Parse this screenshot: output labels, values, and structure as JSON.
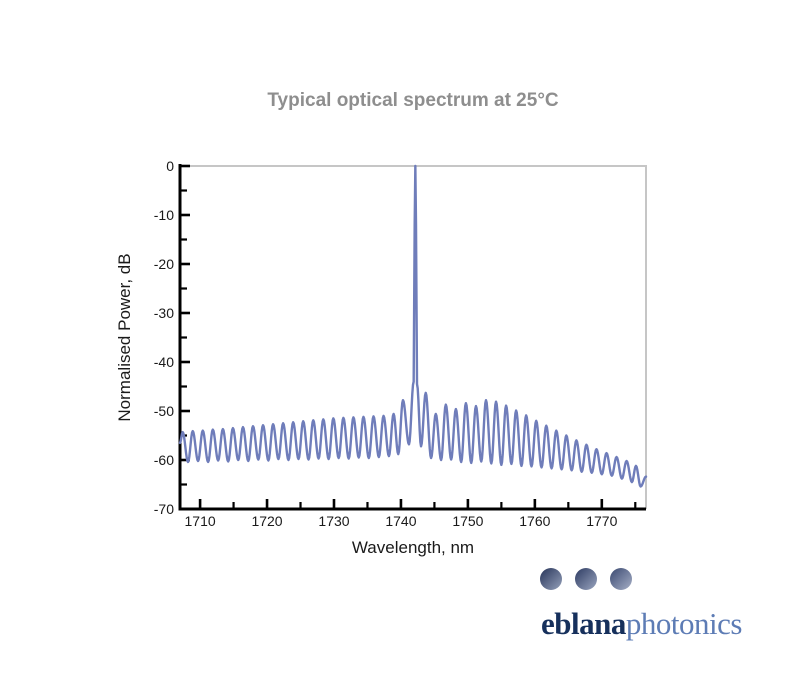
{
  "chart_data": {
    "type": "line",
    "title": "Typical optical spectrum at 25°C",
    "xlabel": "Wavelength, nm",
    "ylabel": "Normalised Power, dB",
    "xlim": [
      1707.0,
      1776.6
    ],
    "ylim": [
      -70,
      0
    ],
    "x_major_ticks": [
      1710,
      1720,
      1730,
      1740,
      1750,
      1760,
      1770
    ],
    "x_minor_ticks": [
      1715,
      1725,
      1735,
      1745,
      1755,
      1765,
      1775
    ],
    "y_major_ticks": [
      0,
      -10,
      -20,
      -30,
      -40,
      -50,
      -60,
      -70
    ],
    "y_minor_ticks": [
      -5,
      -15,
      -25,
      -35,
      -45,
      -55,
      -65
    ],
    "grid": false,
    "legend": null,
    "line_color": "#6f7dba",
    "axis_color": "#000000",
    "frame_color": "#c6c6c6",
    "title_color": "#8e8e8e",
    "main_peak": {
      "wavelength": 1742.2,
      "value": 0
    },
    "series": [
      {
        "name": "Optical spectrum at 25°C",
        "points": [
          [
            1707.0,
            -56.5
          ],
          [
            1707.4,
            -54.3
          ],
          [
            1708.2,
            -60.4
          ],
          [
            1708.9,
            -54.1
          ],
          [
            1709.7,
            -60.2
          ],
          [
            1710.4,
            -54.0
          ],
          [
            1711.2,
            -60.4
          ],
          [
            1711.9,
            -53.8
          ],
          [
            1712.7,
            -60.1
          ],
          [
            1713.4,
            -53.7
          ],
          [
            1714.2,
            -60.3
          ],
          [
            1714.9,
            -53.5
          ],
          [
            1715.7,
            -60.0
          ],
          [
            1716.4,
            -53.3
          ],
          [
            1717.2,
            -60.2
          ],
          [
            1717.9,
            -53.1
          ],
          [
            1718.7,
            -59.9
          ],
          [
            1719.4,
            -52.9
          ],
          [
            1720.2,
            -60.1
          ],
          [
            1720.9,
            -52.7
          ],
          [
            1721.7,
            -59.8
          ],
          [
            1722.4,
            -52.5
          ],
          [
            1723.2,
            -60.0
          ],
          [
            1723.9,
            -52.3
          ],
          [
            1724.7,
            -59.8
          ],
          [
            1725.4,
            -52.1
          ],
          [
            1726.2,
            -59.9
          ],
          [
            1726.9,
            -51.9
          ],
          [
            1727.7,
            -59.7
          ],
          [
            1728.4,
            -51.7
          ],
          [
            1729.2,
            -59.8
          ],
          [
            1729.9,
            -51.5
          ],
          [
            1730.7,
            -59.6
          ],
          [
            1731.4,
            -51.4
          ],
          [
            1732.2,
            -59.7
          ],
          [
            1732.9,
            -51.3
          ],
          [
            1733.7,
            -59.5
          ],
          [
            1734.4,
            -51.2
          ],
          [
            1735.2,
            -59.6
          ],
          [
            1735.9,
            -51.1
          ],
          [
            1736.7,
            -59.4
          ],
          [
            1737.4,
            -51.0
          ],
          [
            1738.2,
            -59.2
          ],
          [
            1738.9,
            -50.6
          ],
          [
            1739.6,
            -58.8
          ],
          [
            1740.3,
            -47.8
          ],
          [
            1741.2,
            -56.8
          ],
          [
            1741.9,
            -44.0
          ],
          [
            1742.05,
            -12.0
          ],
          [
            1742.15,
            0.0
          ],
          [
            1742.25,
            -12.0
          ],
          [
            1742.4,
            -44.5
          ],
          [
            1743.0,
            -57.2
          ],
          [
            1743.7,
            -46.3
          ],
          [
            1744.5,
            -59.6
          ],
          [
            1745.2,
            -50.6
          ],
          [
            1746.0,
            -60.0
          ],
          [
            1746.7,
            -48.7
          ],
          [
            1747.5,
            -59.9
          ],
          [
            1748.2,
            -49.6
          ],
          [
            1749.0,
            -60.4
          ],
          [
            1749.7,
            -48.4
          ],
          [
            1750.5,
            -60.6
          ],
          [
            1751.2,
            -49.0
          ],
          [
            1752.0,
            -60.3
          ],
          [
            1752.7,
            -47.8
          ],
          [
            1753.5,
            -60.7
          ],
          [
            1754.2,
            -48.1
          ],
          [
            1755.0,
            -61.0
          ],
          [
            1755.7,
            -48.9
          ],
          [
            1756.5,
            -60.8
          ],
          [
            1757.2,
            -49.9
          ],
          [
            1758.0,
            -61.2
          ],
          [
            1758.7,
            -50.9
          ],
          [
            1759.5,
            -61.3
          ],
          [
            1760.2,
            -52.0
          ],
          [
            1761.0,
            -61.5
          ],
          [
            1761.7,
            -53.0
          ],
          [
            1762.5,
            -61.7
          ],
          [
            1763.2,
            -54.0
          ],
          [
            1764.0,
            -61.9
          ],
          [
            1764.7,
            -55.0
          ],
          [
            1765.5,
            -62.1
          ],
          [
            1766.2,
            -56.0
          ],
          [
            1767.0,
            -62.4
          ],
          [
            1767.7,
            -56.9
          ],
          [
            1768.5,
            -62.6
          ],
          [
            1769.2,
            -57.8
          ],
          [
            1770.0,
            -62.9
          ],
          [
            1770.7,
            -58.6
          ],
          [
            1771.5,
            -63.2
          ],
          [
            1772.2,
            -59.4
          ],
          [
            1773.0,
            -63.8
          ],
          [
            1773.7,
            -60.2
          ],
          [
            1774.5,
            -64.5
          ],
          [
            1775.1,
            -61.2
          ],
          [
            1775.8,
            -65.4
          ],
          [
            1776.6,
            -63.4
          ]
        ]
      }
    ]
  },
  "logo": {
    "brand_bold": "eblana",
    "brand_light": "photonics",
    "brand_bold_color": "#16305c",
    "brand_light_color": "#5d7cb5",
    "dots": [
      {
        "from": "#273459",
        "to": "#94a0ba"
      },
      {
        "from": "#2d3b62",
        "to": "#9aa5bf"
      },
      {
        "from": "#3a4970",
        "to": "#a6afc7"
      }
    ]
  }
}
